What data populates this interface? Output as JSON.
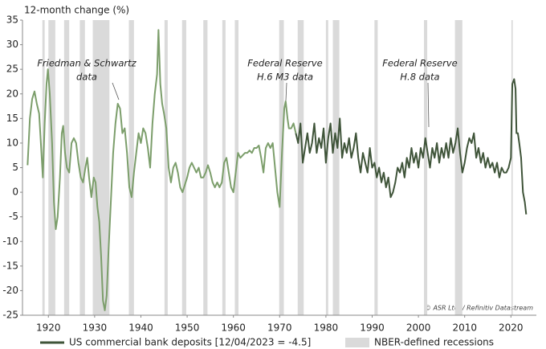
{
  "chart_data": {
    "type": "line",
    "y_axis_label": "12-month change (%)",
    "xlim": [
      1914.4,
      2025.5
    ],
    "ylim": [
      -25,
      35
    ],
    "xticks": [
      1920,
      1930,
      1940,
      1950,
      1960,
      1970,
      1980,
      1990,
      2000,
      2010,
      2020
    ],
    "yticks": [
      -25,
      -20,
      -15,
      -10,
      -5,
      0,
      5,
      10,
      15,
      20,
      25,
      30,
      35
    ],
    "recession_label": "NBER-defined recessions",
    "recession_color": "#dadada",
    "recessions": [
      [
        1918.7,
        1919.2
      ],
      [
        1920.0,
        1921.5
      ],
      [
        1923.4,
        1924.5
      ],
      [
        1926.8,
        1927.9
      ],
      [
        1929.6,
        1933.2
      ],
      [
        1937.4,
        1938.5
      ],
      [
        1945.1,
        1945.8
      ],
      [
        1948.9,
        1949.8
      ],
      [
        1953.5,
        1954.4
      ],
      [
        1957.6,
        1958.3
      ],
      [
        1960.3,
        1961.1
      ],
      [
        1969.9,
        1970.9
      ],
      [
        1973.9,
        1975.2
      ],
      [
        1980.0,
        1980.5
      ],
      [
        1981.5,
        1982.9
      ],
      [
        1990.5,
        1991.2
      ],
      [
        2001.2,
        2001.9
      ],
      [
        2007.9,
        2009.5
      ],
      [
        2020.1,
        2020.4
      ]
    ],
    "annotations": [
      {
        "lines": [
          "Friedman & Schwartz",
          "data"
        ]
      },
      {
        "lines": [
          "Federal Reserve",
          "H.6 M3 data"
        ]
      },
      {
        "lines": [
          "Federal Reserve",
          "H.8 data"
        ]
      }
    ],
    "source_note": "© ASR Ltd. / Refinitiv Datastream",
    "series": [
      {
        "color": "#7c9e6b",
        "x": [
          1915.5,
          1916,
          1916.5,
          1917,
          1917.5,
          1918,
          1918.5,
          1918.8,
          1919.2,
          1919.6,
          1919.9,
          1920.3,
          1920.8,
          1921.2,
          1921.6,
          1922,
          1922.5,
          1922.9,
          1923.2,
          1923.6,
          1924,
          1924.5,
          1925,
          1925.5,
          1926,
          1926.5,
          1927,
          1927.5,
          1928,
          1928.4,
          1928.8,
          1929.3,
          1929.8,
          1930.2,
          1930.6,
          1931,
          1931.4,
          1931.8,
          1932.2,
          1932.6,
          1933,
          1933.5,
          1934,
          1934.5,
          1935,
          1935.5,
          1936,
          1936.5,
          1937,
          1937.5,
          1938,
          1938.5,
          1939,
          1939.5,
          1940,
          1940.5,
          1941,
          1941.5,
          1942,
          1942.5,
          1943,
          1943.5,
          1943.8,
          1944.2,
          1944.6,
          1945,
          1945.5,
          1946,
          1946.5,
          1947,
          1947.5,
          1948,
          1948.5,
          1949,
          1949.5,
          1950,
          1950.5,
          1951,
          1951.5,
          1952,
          1952.5,
          1953,
          1953.5,
          1954,
          1954.5,
          1955,
          1955.5,
          1956,
          1956.5,
          1957,
          1957.5,
          1958,
          1958.5,
          1959,
          1959.5,
          1960,
          1960.5,
          1961,
          1961.5,
          1962,
          1962.5,
          1963,
          1963.5,
          1964,
          1964.5,
          1965,
          1965.5,
          1966,
          1966.5,
          1967,
          1967.5,
          1968,
          1968.5,
          1969,
          1969.5,
          1970,
          1970.5,
          1971,
          1971.3,
          1971.7,
          1972,
          1972.5,
          1973,
          1973.5
        ],
        "values": [
          5.5,
          15,
          19,
          20.5,
          18,
          16,
          8,
          3,
          14,
          22,
          25,
          20,
          10,
          -2,
          -7.5,
          -5,
          3,
          12,
          13.5,
          8,
          5,
          4,
          10,
          11,
          10,
          6,
          3,
          2,
          5,
          7,
          3,
          -1,
          3,
          2,
          -3,
          -6,
          -13,
          -22,
          -24,
          -21,
          -12,
          -2,
          8,
          14,
          18,
          17,
          12,
          13,
          8,
          1,
          -1,
          4,
          8,
          12,
          10,
          13,
          12,
          9,
          5,
          14,
          20,
          24,
          33,
          22,
          18,
          16,
          13,
          5,
          2,
          5,
          6,
          4,
          1,
          0,
          1.5,
          3,
          5,
          6,
          5,
          4,
          5,
          3,
          3,
          4,
          5.5,
          4,
          2,
          1,
          2,
          1,
          2,
          6,
          7,
          4,
          1,
          0,
          4,
          8,
          7,
          7.5,
          8,
          8,
          8.5,
          8,
          9,
          9,
          9.5,
          7,
          4,
          9,
          10,
          9,
          10,
          5,
          0,
          -3,
          8,
          17,
          18.5,
          15,
          13,
          13,
          14,
          12
        ]
      },
      {
        "name": "US commercial bank deposits [12/04/2023 = -4.5]",
        "color": "#3f5439",
        "x": [
          1973.5,
          1974,
          1974.5,
          1975,
          1975.5,
          1976,
          1976.5,
          1977,
          1977.5,
          1978,
          1978.5,
          1979,
          1979.5,
          1980,
          1980.5,
          1981,
          1981.5,
          1982,
          1982.5,
          1983,
          1983.5,
          1984,
          1984.5,
          1985,
          1985.5,
          1986,
          1986.5,
          1987,
          1987.5,
          1988,
          1988.5,
          1989,
          1989.5,
          1990,
          1990.5,
          1991,
          1991.5,
          1992,
          1992.5,
          1993,
          1993.5,
          1994,
          1994.5,
          1995,
          1995.5,
          1996,
          1996.5,
          1997,
          1997.5,
          1998,
          1998.5,
          1999,
          1999.5,
          2000,
          2000.5,
          2001,
          2001.5,
          2002,
          2002.5,
          2003,
          2003.5,
          2004,
          2004.5,
          2005,
          2005.5,
          2006,
          2006.5,
          2007,
          2007.5,
          2008,
          2008.5,
          2009,
          2009.5,
          2010,
          2010.5,
          2011,
          2011.5,
          2012,
          2012.5,
          2013,
          2013.5,
          2014,
          2014.5,
          2015,
          2015.5,
          2016,
          2016.5,
          2017,
          2017.5,
          2018,
          2018.5,
          2019,
          2019.5,
          2020,
          2020.3,
          2020.7,
          2021,
          2021.2,
          2021.5,
          2021.8,
          2022.2,
          2022.6,
          2023.0,
          2023.3
        ],
        "values": [
          12,
          10,
          14,
          6,
          9,
          12,
          8,
          10,
          14,
          8,
          11,
          9,
          13,
          6,
          11,
          14,
          8,
          12,
          9,
          15,
          7,
          10,
          8,
          11,
          7,
          9,
          12,
          7,
          4,
          8,
          6,
          4,
          9,
          5,
          6,
          3,
          5,
          2,
          4,
          1,
          3,
          -1,
          0,
          2,
          5,
          4,
          6,
          3,
          7,
          5,
          9,
          6,
          8,
          5,
          9,
          7,
          11,
          8,
          5,
          9,
          7,
          10,
          6,
          9,
          7,
          10,
          7,
          11,
          8,
          10,
          13,
          8,
          4,
          6,
          9,
          11,
          10,
          12,
          7,
          9,
          6,
          8,
          5,
          7,
          5,
          6,
          4,
          6,
          3,
          5,
          4,
          4,
          5,
          7,
          22,
          23,
          21,
          12,
          12,
          10,
          7,
          0,
          -2,
          -4.5
        ]
      }
    ]
  }
}
